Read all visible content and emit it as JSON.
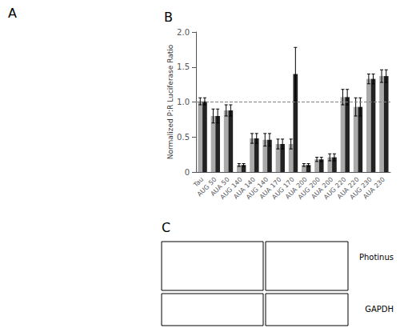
{
  "chart_data": {
    "type": "bar",
    "title": "B",
    "ylabel": "Normalized P:R Luciferase Ratio",
    "categories": [
      "Tau",
      "AUG 50",
      "AUA 50",
      "AUG 140",
      "AUA 140",
      "AUG 140",
      "AUA 170",
      "AUG 170",
      "AUA 200",
      "AUG 200",
      "AUA 200",
      "AUG 220",
      "AUA 220",
      "AUG 230",
      "AUA 230"
    ],
    "series": [
      {
        "color": "#aaaaaa",
        "values": [
          1.01,
          0.8,
          0.88,
          0.1,
          0.48,
          0.46,
          0.4,
          0.4,
          0.1,
          0.18,
          0.21,
          1.07,
          0.93,
          1.33,
          1.37
        ],
        "errors": [
          0.05,
          0.1,
          0.08,
          0.02,
          0.07,
          0.09,
          0.07,
          0.07,
          0.02,
          0.03,
          0.05,
          0.11,
          0.13,
          0.07,
          0.09
        ]
      },
      {
        "color": "#222222",
        "values": [
          1.01,
          0.8,
          0.88,
          0.1,
          0.48,
          0.46,
          0.4,
          1.4,
          0.1,
          0.18,
          0.21,
          1.07,
          0.93,
          1.33,
          1.37
        ],
        "errors": [
          0.05,
          0.1,
          0.08,
          0.02,
          0.07,
          0.09,
          0.07,
          0.38,
          0.02,
          0.03,
          0.05,
          0.11,
          0.13,
          0.07,
          0.09
        ]
      }
    ],
    "reference_line": 1.0,
    "ylim": [
      0,
      2.0
    ],
    "yticks": [
      0,
      0.5,
      {
        "value": 1.0,
        "label": "1.0"
      },
      1.5,
      {
        "value": 2.0,
        "label": "2.0"
      }
    ],
    "grid": false,
    "annotations": [
      "A",
      "C",
      "Photinus",
      "GAPDH"
    ]
  }
}
